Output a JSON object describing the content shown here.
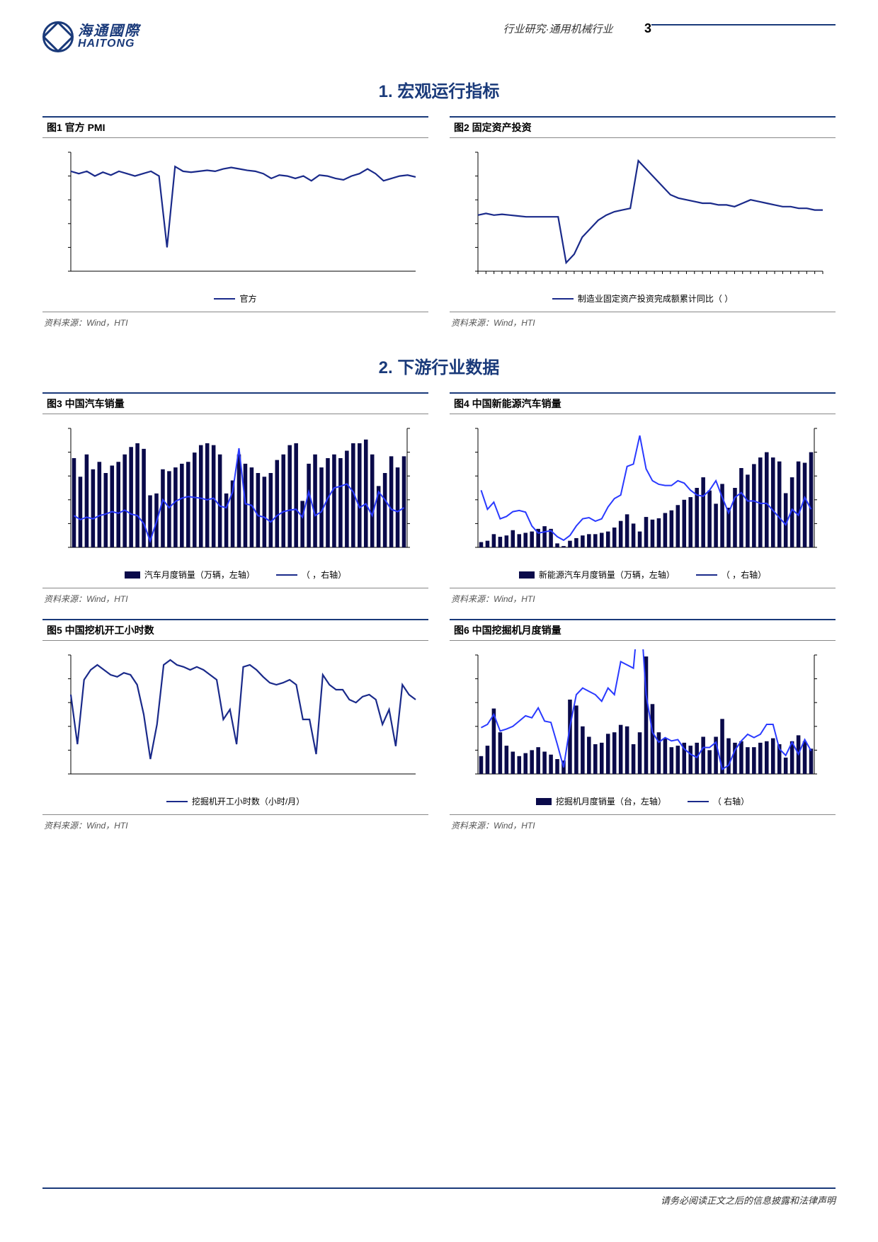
{
  "header": {
    "logo_cn": "海通國際",
    "logo_en": "HAITONG",
    "category": "行业研究·通用机械行业",
    "page_number": "3"
  },
  "section1": {
    "title": "1. 宏观运行指标"
  },
  "section2": {
    "title": "2. 下游行业数据"
  },
  "footer": {
    "text": "请务必阅读正文之后的信息披露和法律声明"
  },
  "source_common": "资料来源：Wind，HTI",
  "colors": {
    "brand": "#1a3a7a",
    "line": "#1a2a8a",
    "line2": "#2a3aff",
    "bar": "#0a0a4a",
    "axis": "#000000"
  },
  "fig1": {
    "title": "图1   官方 PMI",
    "type": "line",
    "legend": [
      {
        "kind": "line",
        "label": "官方"
      }
    ],
    "ylim": [
      30,
      55
    ],
    "values": [
      51,
      50.5,
      51,
      50,
      50.8,
      50.2,
      51,
      50.5,
      50,
      50.5,
      51,
      50,
      35,
      52,
      51,
      50.8,
      51,
      51.2,
      51,
      51.5,
      51.8,
      51.5,
      51.2,
      51,
      50.5,
      49.5,
      50.2,
      50,
      49.5,
      50,
      49,
      50.2,
      50,
      49.5,
      49.2,
      50,
      50.5,
      51.5,
      50.5,
      49,
      49.5,
      50,
      50.2,
      49.8
    ]
  },
  "fig2": {
    "title": "图2   固定资产投资",
    "type": "line",
    "legend": [
      {
        "kind": "line",
        "label": "制造业固定资产投资完成额累计同比（  ）"
      }
    ],
    "ylim": [
      -30,
      40
    ],
    "xticks": 44,
    "values": [
      3,
      4,
      3,
      3.5,
      3,
      2.5,
      2,
      2,
      2,
      2,
      2,
      -25,
      -20,
      -10,
      -5,
      0,
      3,
      5,
      6,
      7,
      35,
      30,
      25,
      20,
      15,
      13,
      12,
      11,
      10,
      10,
      9,
      9,
      8,
      10,
      12,
      11,
      10,
      9,
      8,
      8,
      7,
      7,
      6,
      6
    ]
  },
  "fig3": {
    "title": "图3   中国汽车销量",
    "type": "bar+line",
    "legend": [
      {
        "kind": "bar",
        "label": "汽车月度销量（万辆，左轴）"
      },
      {
        "kind": "line",
        "label": "（ ，右轴）"
      }
    ],
    "bar_ylim": [
      0,
      320
    ],
    "line_ylim": [
      -50,
      100
    ],
    "bars": [
      240,
      190,
      250,
      210,
      230,
      200,
      220,
      230,
      250,
      270,
      280,
      265,
      140,
      145,
      210,
      205,
      215,
      225,
      230,
      255,
      275,
      280,
      275,
      250,
      145,
      180,
      250,
      225,
      215,
      200,
      190,
      200,
      235,
      250,
      275,
      280,
      125,
      225,
      250,
      215,
      240,
      250,
      240,
      260,
      280,
      280,
      290,
      250,
      165,
      200,
      245,
      215,
      245
    ],
    "line": [
      -10,
      -15,
      -12,
      -14,
      -10,
      -8,
      -5,
      -7,
      -3,
      -8,
      -10,
      -20,
      -42,
      -18,
      10,
      0,
      8,
      12,
      14,
      13,
      12,
      10,
      12,
      2,
      0,
      20,
      75,
      5,
      3,
      -10,
      -12,
      -18,
      -10,
      -5,
      -3,
      -2,
      -12,
      20,
      -10,
      -5,
      12,
      25,
      27,
      30,
      20,
      0,
      5,
      -10,
      20,
      10,
      -2,
      -5,
      0
    ]
  },
  "fig4": {
    "title": "图4   中国新能源汽车销量",
    "type": "bar+line",
    "legend": [
      {
        "kind": "bar",
        "label": "新能源汽车月度销量（万辆，左轴）"
      },
      {
        "kind": "line",
        "label": "（ ，右轴）"
      }
    ],
    "bar_ylim": [
      0,
      90
    ],
    "line_ylim": [
      -100,
      400
    ],
    "bars": [
      4,
      5,
      10,
      8,
      9,
      13,
      10,
      11,
      12,
      14,
      16,
      14,
      3,
      1,
      5,
      7,
      9,
      10,
      10,
      11,
      12,
      15,
      20,
      25,
      18,
      12,
      23,
      21,
      22,
      26,
      28,
      32,
      36,
      38,
      45,
      53,
      43,
      33,
      48,
      30,
      45,
      60,
      55,
      63,
      68,
      72,
      68,
      65,
      41,
      53,
      65,
      64,
      72
    ],
    "line": [
      140,
      60,
      90,
      20,
      30,
      50,
      55,
      48,
      -10,
      -40,
      -35,
      -30,
      -55,
      -70,
      -50,
      -10,
      20,
      25,
      10,
      20,
      70,
      105,
      120,
      240,
      250,
      370,
      230,
      180,
      165,
      160,
      160,
      180,
      170,
      140,
      120,
      115,
      140,
      180,
      110,
      45,
      110,
      130,
      95,
      95,
      85,
      85,
      55,
      25,
      -5,
      60,
      35,
      110,
      60
    ]
  },
  "fig5": {
    "title": "图5   中国挖机开工小时数",
    "type": "line",
    "legend": [
      {
        "kind": "line",
        "label": "挖掘机开工小时数（小时/月）"
      }
    ],
    "ylim": [
      40,
      160
    ],
    "values": [
      120,
      70,
      135,
      145,
      150,
      145,
      140,
      138,
      142,
      140,
      130,
      100,
      55,
      90,
      150,
      155,
      150,
      148,
      145,
      148,
      145,
      140,
      135,
      95,
      105,
      70,
      148,
      150,
      145,
      138,
      132,
      130,
      132,
      135,
      130,
      95,
      95,
      60,
      140,
      130,
      125,
      125,
      115,
      112,
      118,
      120,
      115,
      90,
      105,
      68,
      130,
      120,
      115
    ]
  },
  "fig6": {
    "title": "图6   中国挖掘机月度销量",
    "type": "bar+line",
    "legend": [
      {
        "kind": "bar",
        "label": "挖掘机月度销量（台，左轴）"
      },
      {
        "kind": "line",
        "label": "（  右轴）"
      }
    ],
    "bar_ylim": [
      0,
      80000
    ],
    "line_ylim": [
      -60,
      120
    ],
    "bars": [
      12000,
      19000,
      44000,
      28000,
      19000,
      15000,
      12000,
      14000,
      16000,
      18000,
      15000,
      13000,
      10000,
      9000,
      50000,
      46000,
      32000,
      25000,
      20000,
      21000,
      27000,
      28000,
      33000,
      32000,
      20000,
      28000,
      79000,
      47000,
      28000,
      24000,
      18000,
      19000,
      21000,
      19000,
      21000,
      25000,
      16000,
      25000,
      37000,
      24000,
      21000,
      22000,
      18000,
      18000,
      21000,
      22000,
      24000,
      20000,
      11000,
      22000,
      26000,
      22000,
      17000
    ],
    "line": [
      10,
      15,
      30,
      5,
      8,
      12,
      20,
      28,
      25,
      40,
      20,
      18,
      -15,
      -50,
      12,
      60,
      70,
      65,
      60,
      50,
      70,
      60,
      110,
      105,
      100,
      205,
      60,
      3,
      -12,
      -5,
      -10,
      -8,
      -22,
      -30,
      -35,
      -20,
      -20,
      -12,
      -53,
      -47,
      -24,
      -10,
      0,
      -5,
      0,
      15,
      15,
      -22,
      -32,
      -12,
      -30,
      -8,
      -25
    ]
  }
}
